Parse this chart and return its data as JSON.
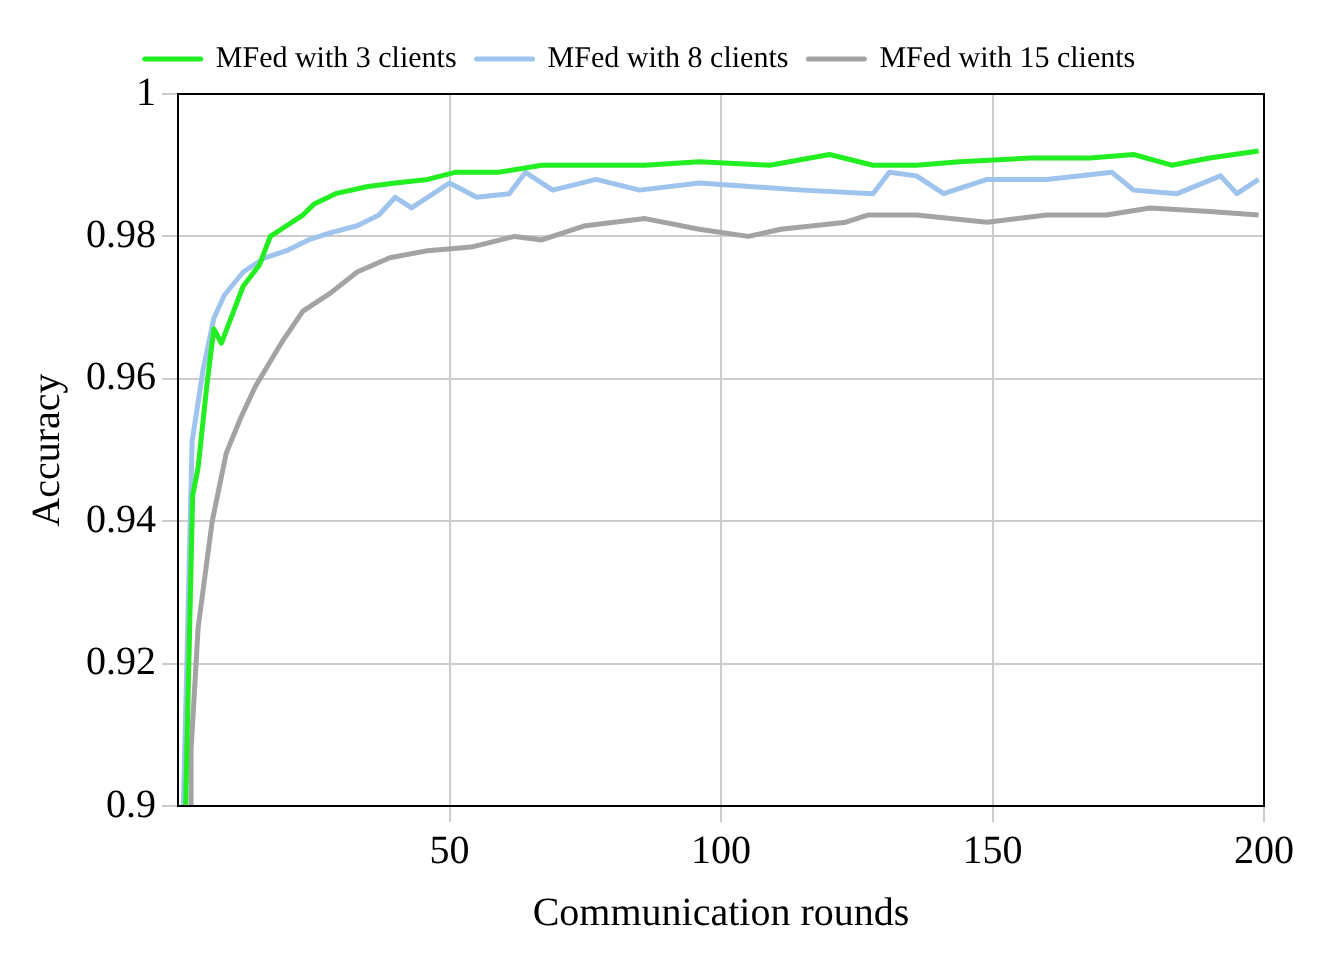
{
  "chart_data": {
    "type": "line",
    "xlabel": "Communication rounds",
    "ylabel": "Accuracy",
    "xlim": [
      0,
      200
    ],
    "xticks": [
      50,
      100,
      150,
      200
    ],
    "ylim": [
      0.9,
      1
    ],
    "yticks": [
      0.9,
      0.92,
      0.94,
      0.96,
      0.98,
      1
    ],
    "grid": true,
    "legend": "top",
    "marker": "none",
    "line_style": "solid",
    "series": [
      {
        "name": "MFed with 3 clients",
        "color": "#22ee22",
        "x": [
          1.4,
          2.7,
          3.7,
          5.3,
          6.6,
          8,
          10,
          12,
          15,
          17,
          20,
          23,
          25,
          29,
          35,
          40,
          46,
          51,
          59,
          67,
          76,
          86,
          96,
          109,
          120,
          128,
          136,
          144,
          157,
          168,
          176,
          183,
          190,
          199
        ],
        "values": [
          0.9,
          0.9436,
          0.9475,
          0.959,
          0.967,
          0.965,
          0.969,
          0.973,
          0.976,
          0.98,
          0.9815,
          0.983,
          0.9845,
          0.986,
          0.987,
          0.9875,
          0.988,
          0.989,
          0.989,
          0.99,
          0.99,
          0.99,
          0.9905,
          0.99,
          0.9915,
          0.99,
          0.99,
          0.9905,
          0.991,
          0.991,
          0.9915,
          0.99,
          0.991,
          0.992
        ]
      },
      {
        "name": "MFed with 8 clients",
        "color": "#9ec4ee",
        "x": [
          1,
          2.6,
          4.6,
          6.6,
          8.5,
          12,
          16,
          20,
          24,
          28,
          33,
          37,
          40,
          43,
          50,
          55,
          61,
          64,
          69,
          77,
          85,
          96,
          115,
          128,
          131,
          136,
          141,
          149,
          160,
          172,
          176,
          184,
          192,
          195,
          199
        ],
        "values": [
          0.9,
          0.9512,
          0.9612,
          0.9685,
          0.9717,
          0.975,
          0.977,
          0.978,
          0.9795,
          0.9805,
          0.9815,
          0.983,
          0.9855,
          0.984,
          0.9875,
          0.9855,
          0.986,
          0.989,
          0.9865,
          0.988,
          0.9865,
          0.9875,
          0.9865,
          0.986,
          0.989,
          0.9885,
          0.986,
          0.988,
          0.988,
          0.989,
          0.9865,
          0.986,
          0.9885,
          0.986,
          0.988
        ]
      },
      {
        "name": "MFed with 15 clients",
        "color": "#a3a3a3",
        "x": [
          2.3,
          2.4,
          3.7,
          6.3,
          8.9,
          11.6,
          14.3,
          19,
          23,
          28,
          33,
          39,
          46,
          54,
          62,
          67,
          75,
          86,
          96,
          105,
          111,
          123,
          127,
          136,
          149,
          160,
          171,
          179,
          190,
          199
        ],
        "values": [
          0.9,
          0.9078,
          0.925,
          0.94,
          0.9496,
          0.9546,
          0.959,
          0.965,
          0.9695,
          0.972,
          0.975,
          0.977,
          0.978,
          0.9785,
          0.98,
          0.9795,
          0.9815,
          0.9825,
          0.981,
          0.98,
          0.981,
          0.982,
          0.983,
          0.983,
          0.982,
          0.983,
          0.983,
          0.984,
          0.9835,
          0.983
        ]
      }
    ]
  }
}
